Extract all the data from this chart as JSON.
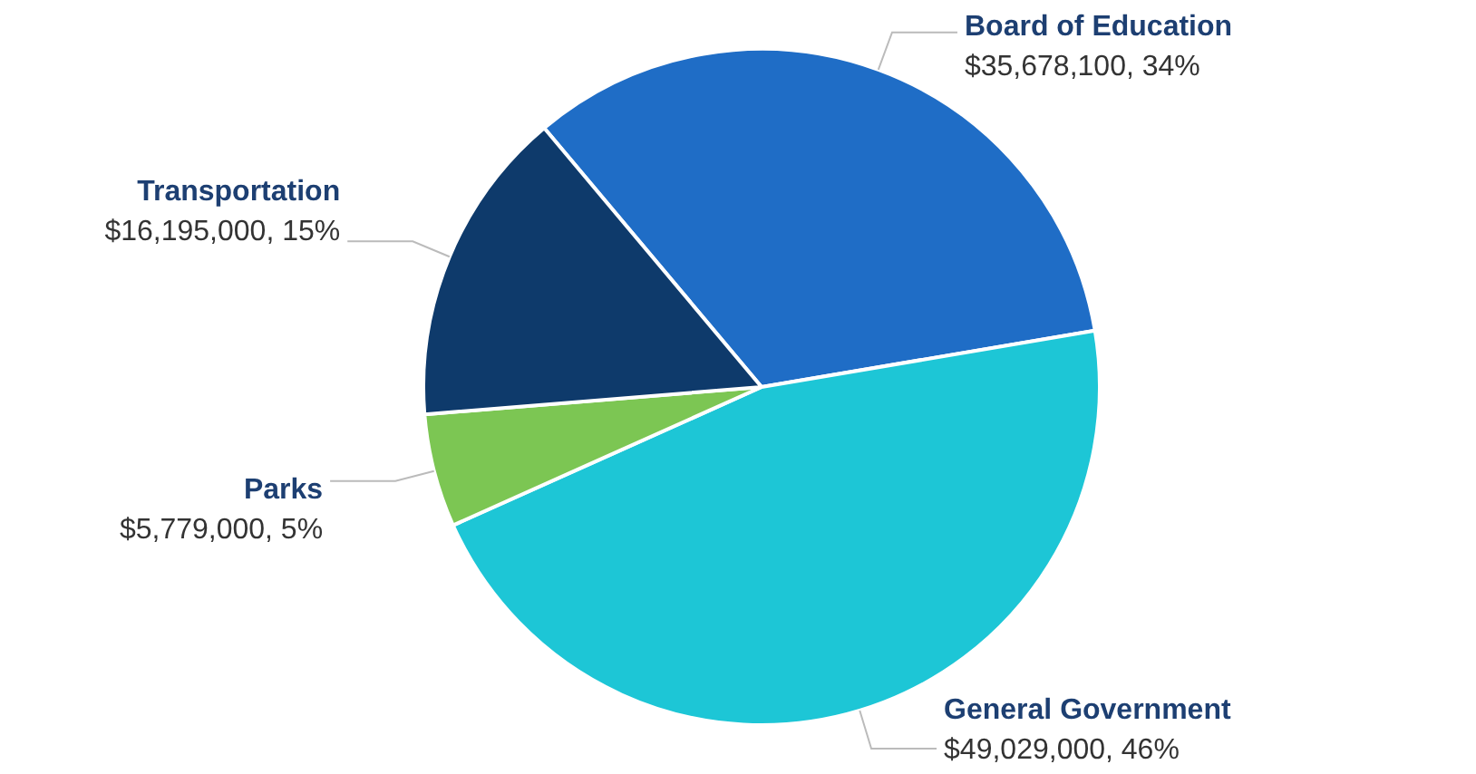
{
  "chart_data": {
    "type": "pie",
    "categories": [
      "Board of Education",
      "General Government",
      "Parks",
      "Transportation"
    ],
    "values": [
      35678100,
      49029000,
      5779000,
      16195000
    ],
    "colors": [
      "#1f6dc6",
      "#1dc6d6",
      "#7cc653",
      "#0e3a6b"
    ],
    "value_labels": [
      "$35,678,100, 34%",
      "$49,029,000, 46%",
      "$5,779,000, 5%",
      "$16,195,000, 15%"
    ],
    "legend": false
  }
}
